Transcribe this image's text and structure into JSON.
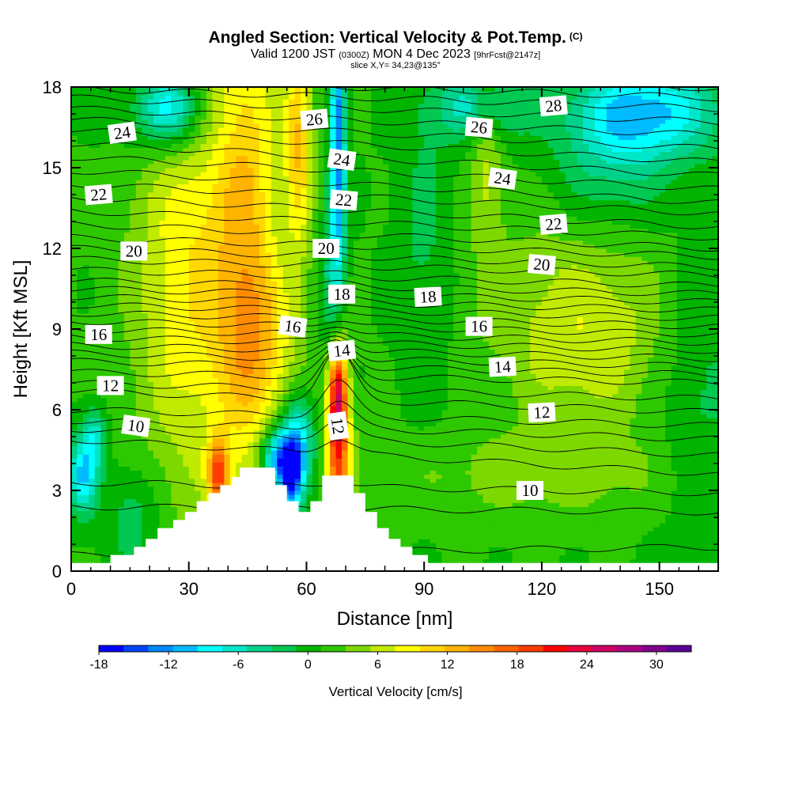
{
  "header": {
    "title": "Angled Section: Vertical Velocity & Pot.Temp.",
    "title_suffix": "(C)",
    "subtitle_a": "Valid 1200 JST",
    "subtitle_b": "(0300Z)",
    "subtitle_c": "MON 4 Dec 2023",
    "subtitle_d": "[9hrFcst@2147z]",
    "slice": "slice X,Y= 34,23@135°"
  },
  "chart_data": {
    "type": "heatmap",
    "xlabel": "Distance [nm]",
    "ylabel": "Height [Kft MSL]",
    "xlim": [
      0,
      165
    ],
    "ylim": [
      0,
      18
    ],
    "xticks": [
      0,
      30,
      60,
      90,
      120,
      150
    ],
    "yticks": [
      0,
      3,
      6,
      9,
      12,
      15,
      18
    ],
    "colorbar": {
      "title": "Vertical Velocity [cm/s]",
      "range": [
        -18,
        33
      ],
      "tick_values": [
        -18,
        -12,
        -6,
        0,
        6,
        12,
        18,
        24,
        30
      ],
      "tick_labels": [
        "-18",
        "-12",
        "-6",
        "0",
        "6",
        "12",
        "18",
        "24",
        "30"
      ],
      "colors": [
        "#0000ff",
        "#0044ff",
        "#0088ff",
        "#00bbff",
        "#00ffff",
        "#00e6c8",
        "#00d28c",
        "#00c850",
        "#00b400",
        "#2ec800",
        "#7dd800",
        "#c0ea00",
        "#ffff00",
        "#ffd800",
        "#ffb400",
        "#ff8c00",
        "#ff6400",
        "#ff3c00",
        "#ff0000",
        "#e6003c",
        "#cc0064",
        "#aa0080",
        "#82008c",
        "#5a0096"
      ]
    },
    "terrain": [
      [
        0,
        0.3
      ],
      [
        10,
        0.3
      ],
      [
        10,
        0.6
      ],
      [
        16,
        0.6
      ],
      [
        16,
        0.9
      ],
      [
        19,
        0.9
      ],
      [
        19,
        1.2
      ],
      [
        22,
        1.2
      ],
      [
        22,
        1.6
      ],
      [
        26,
        1.6
      ],
      [
        26,
        1.9
      ],
      [
        29,
        1.9
      ],
      [
        29,
        2.2
      ],
      [
        32,
        2.2
      ],
      [
        32,
        2.6
      ],
      [
        35,
        2.6
      ],
      [
        35,
        2.9
      ],
      [
        38,
        2.9
      ],
      [
        38,
        3.2
      ],
      [
        41,
        3.2
      ],
      [
        41,
        3.5
      ],
      [
        43,
        3.5
      ],
      [
        43,
        3.85
      ],
      [
        52,
        3.85
      ],
      [
        52,
        3.2
      ],
      [
        55,
        3.2
      ],
      [
        55,
        2.6
      ],
      [
        58,
        2.6
      ],
      [
        58,
        2.2
      ],
      [
        61,
        2.2
      ],
      [
        61,
        2.6
      ],
      [
        64,
        2.6
      ],
      [
        64,
        3.55
      ],
      [
        72,
        3.55
      ],
      [
        72,
        2.9
      ],
      [
        75,
        2.9
      ],
      [
        75,
        2.2
      ],
      [
        78,
        2.2
      ],
      [
        78,
        1.6
      ],
      [
        81,
        1.6
      ],
      [
        81,
        1.2
      ],
      [
        84,
        1.2
      ],
      [
        84,
        0.9
      ],
      [
        87,
        0.9
      ],
      [
        87,
        0.6
      ],
      [
        91,
        0.6
      ],
      [
        91,
        0.3
      ],
      [
        165,
        0.3
      ]
    ],
    "velocity_regions": [
      {
        "value": 8,
        "x": 30,
        "y": 11,
        "sx": 10,
        "sy": 6
      },
      {
        "value": 9,
        "x": 45,
        "y": 13,
        "sx": 6,
        "sy": 8
      },
      {
        "value": 10,
        "x": 58,
        "y": 16,
        "sx": 2.5,
        "sy": 3
      },
      {
        "value": 5,
        "x": 50,
        "y": 8.5,
        "sx": 7,
        "sy": 2
      },
      {
        "value": 18,
        "x": 68,
        "y": 4.8,
        "sx": 2.2,
        "sy": 2.3
      },
      {
        "value": 12,
        "x": 68,
        "y": 6.8,
        "sx": 1.5,
        "sy": 1.2
      },
      {
        "value": 14,
        "x": 37.5,
        "y": 3.6,
        "sx": 1.8,
        "sy": 0.9
      },
      {
        "value": 5,
        "x": 106,
        "y": 16,
        "sx": 3,
        "sy": 3
      },
      {
        "value": 5,
        "x": 131,
        "y": 8,
        "sx": 15,
        "sy": 2
      },
      {
        "value": 3,
        "x": 130,
        "y": 11,
        "sx": 20,
        "sy": 2
      },
      {
        "value": -5,
        "x": 25,
        "y": 17,
        "sx": 9,
        "sy": 1.3
      },
      {
        "value": -8,
        "x": 25,
        "y": 17.3,
        "sx": 5,
        "sy": 0.9
      },
      {
        "value": -12,
        "x": 68,
        "y": 17,
        "sx": 1.3,
        "sy": 2
      },
      {
        "value": -9,
        "x": 68,
        "y": 13,
        "sx": 1.5,
        "sy": 2.5
      },
      {
        "value": -4,
        "x": 66,
        "y": 10,
        "sx": 2,
        "sy": 2.5
      },
      {
        "value": -10,
        "x": 148,
        "y": 17.1,
        "sx": 13,
        "sy": 1.2
      },
      {
        "value": -8,
        "x": 104,
        "y": 17.3,
        "sx": 8,
        "sy": 0.9
      },
      {
        "value": -5,
        "x": 138,
        "y": 15.5,
        "sx": 10,
        "sy": 2
      },
      {
        "value": -11,
        "x": 3,
        "y": 3.6,
        "sx": 2.5,
        "sy": 1
      },
      {
        "value": -7,
        "x": 6,
        "y": 5,
        "sx": 2,
        "sy": 0.8
      },
      {
        "value": -17,
        "x": 56,
        "y": 3.6,
        "sx": 2.2,
        "sy": 1
      },
      {
        "value": -13,
        "x": 52,
        "y": 4.2,
        "sx": 3,
        "sy": 0.8
      },
      {
        "value": -9,
        "x": 58,
        "y": 5,
        "sx": 3,
        "sy": 1.2
      },
      {
        "value": -4,
        "x": 16,
        "y": 2,
        "sx": 5,
        "sy": 1.5
      },
      {
        "value": -3,
        "x": 160,
        "y": 7,
        "sx": 8,
        "sy": 4
      },
      {
        "value": -3,
        "x": 90,
        "y": 12,
        "sx": 5,
        "sy": 4
      },
      {
        "value": 3,
        "x": 120,
        "y": 3.6,
        "sx": 30,
        "sy": 1.2
      }
    ],
    "theta_contours": [
      {
        "value": 8,
        "y_at_x0": 0.6,
        "y_at_x165": 0.9,
        "bump": 0
      },
      {
        "value": 9,
        "y_at_x0": 2.4,
        "y_at_x165": 2.2,
        "bump": 0
      },
      {
        "value": 9.5,
        "y_at_x0": 3.3,
        "y_at_x165": 2.9,
        "bump": 0.2
      },
      {
        "value": 10,
        "y_at_x0": 4.9,
        "y_at_x165": 3.6,
        "bump": 0.6
      },
      {
        "value": 10.5,
        "y_at_x0": 5.3,
        "y_at_x165": 4.3,
        "bump": 0.8
      },
      {
        "value": 11,
        "y_at_x0": 5.6,
        "y_at_x165": 4.9,
        "bump": 1.0
      },
      {
        "value": 11.5,
        "y_at_x0": 6.0,
        "y_at_x165": 5.4,
        "bump": 1.3
      },
      {
        "value": 12,
        "y_at_x0": 6.7,
        "y_at_x165": 5.9,
        "bump": 1.8
      },
      {
        "value": 12.5,
        "y_at_x0": 7.0,
        "y_at_x165": 6.4,
        "bump": 1.4
      },
      {
        "value": 13,
        "y_at_x0": 7.4,
        "y_at_x165": 7.0,
        "bump": 1.0
      },
      {
        "value": 13.5,
        "y_at_x0": 7.8,
        "y_at_x165": 7.3,
        "bump": 0.8
      },
      {
        "value": 14,
        "y_at_x0": 8.1,
        "y_at_x165": 7.6,
        "bump": 0.7
      },
      {
        "value": 14.5,
        "y_at_x0": 8.4,
        "y_at_x165": 7.9,
        "bump": 0.6
      },
      {
        "value": 15,
        "y_at_x0": 8.7,
        "y_at_x165": 8.2,
        "bump": 0.5
      },
      {
        "value": 15.5,
        "y_at_x0": 9.0,
        "y_at_x165": 8.5,
        "bump": 0.4
      },
      {
        "value": 16,
        "y_at_x0": 9.3,
        "y_at_x165": 8.8,
        "bump": 0.3
      },
      {
        "value": 16.5,
        "y_at_x0": 9.6,
        "y_at_x165": 9.1,
        "bump": 0.3
      },
      {
        "value": 17,
        "y_at_x0": 9.9,
        "y_at_x165": 9.4,
        "bump": 0.2
      },
      {
        "value": 17.5,
        "y_at_x0": 10.2,
        "y_at_x165": 9.7,
        "bump": 0.2
      },
      {
        "value": 18,
        "y_at_x0": 10.5,
        "y_at_x165": 10.0,
        "bump": 0.2
      },
      {
        "value": 18.5,
        "y_at_x0": 10.8,
        "y_at_x165": 10.3,
        "bump": 0.1
      },
      {
        "value": 19,
        "y_at_x0": 11.2,
        "y_at_x165": 10.6,
        "bump": 0.1
      },
      {
        "value": 19.5,
        "y_at_x0": 11.6,
        "y_at_x165": 11.0,
        "bump": 0.1
      },
      {
        "value": 20,
        "y_at_x0": 12.0,
        "y_at_x165": 11.3,
        "bump": 0.1
      },
      {
        "value": 20.5,
        "y_at_x0": 12.4,
        "y_at_x165": 11.7,
        "bump": 0
      },
      {
        "value": 21,
        "y_at_x0": 12.9,
        "y_at_x165": 12.0,
        "bump": 0
      },
      {
        "value": 21.5,
        "y_at_x0": 13.4,
        "y_at_x165": 12.4,
        "bump": 0
      },
      {
        "value": 22,
        "y_at_x0": 13.9,
        "y_at_x165": 12.8,
        "bump": 0
      },
      {
        "value": 22.5,
        "y_at_x0": 14.4,
        "y_at_x165": 13.3,
        "bump": 0
      },
      {
        "value": 23,
        "y_at_x0": 14.9,
        "y_at_x165": 13.7,
        "bump": 0
      },
      {
        "value": 23.5,
        "y_at_x0": 15.4,
        "y_at_x165": 14.2,
        "bump": 0
      },
      {
        "value": 24,
        "y_at_x0": 15.9,
        "y_at_x165": 14.7,
        "bump": 0
      },
      {
        "value": 24.5,
        "y_at_x0": 16.4,
        "y_at_x165": 15.2,
        "bump": 0
      },
      {
        "value": 25,
        "y_at_x0": 16.8,
        "y_at_x165": 15.7,
        "bump": 0
      },
      {
        "value": 25.5,
        "y_at_x0": 17.2,
        "y_at_x165": 16.2,
        "bump": 0
      },
      {
        "value": 26,
        "y_at_x0": 17.6,
        "y_at_x165": 16.7,
        "bump": 0
      },
      {
        "value": 26.5,
        "y_at_x0": 17.95,
        "y_at_x165": 17.2,
        "bump": 0
      },
      {
        "value": 27,
        "y_at_x0": 18.3,
        "y_at_x165": 17.6,
        "bump": 0
      },
      {
        "value": 28,
        "y_at_x0": 18.9,
        "y_at_x165": 17.95,
        "bump": 0
      }
    ],
    "contour_labels": [
      {
        "text": "24",
        "x": 13,
        "y": 16.3,
        "angle": -8
      },
      {
        "text": "22",
        "x": 7,
        "y": 14.0,
        "angle": -5
      },
      {
        "text": "20",
        "x": 16,
        "y": 11.9,
        "angle": 0
      },
      {
        "text": "16",
        "x": 7,
        "y": 8.8,
        "angle": 0
      },
      {
        "text": "12",
        "x": 10,
        "y": 6.9,
        "angle": 0
      },
      {
        "text": "10",
        "x": 16.5,
        "y": 5.4,
        "angle": 8
      },
      {
        "text": "26",
        "x": 62,
        "y": 16.8,
        "angle": -5
      },
      {
        "text": "24",
        "x": 69,
        "y": 15.3,
        "angle": 8
      },
      {
        "text": "22",
        "x": 69.5,
        "y": 13.8,
        "angle": 5
      },
      {
        "text": "20",
        "x": 65,
        "y": 12.0,
        "angle": 0
      },
      {
        "text": "18",
        "x": 69,
        "y": 10.3,
        "angle": 0
      },
      {
        "text": "16",
        "x": 56.5,
        "y": 9.1,
        "angle": 8
      },
      {
        "text": "14",
        "x": 69,
        "y": 8.2,
        "angle": -6
      },
      {
        "text": "12",
        "x": 68,
        "y": 5.4,
        "angle": 82
      },
      {
        "text": "28",
        "x": 123,
        "y": 17.3,
        "angle": -5
      },
      {
        "text": "26",
        "x": 104,
        "y": 16.5,
        "angle": 5
      },
      {
        "text": "24",
        "x": 110,
        "y": 14.6,
        "angle": 8
      },
      {
        "text": "22",
        "x": 123,
        "y": 12.9,
        "angle": -5
      },
      {
        "text": "20",
        "x": 120,
        "y": 11.4,
        "angle": 5
      },
      {
        "text": "18",
        "x": 91,
        "y": 10.2,
        "angle": -3
      },
      {
        "text": "16",
        "x": 104,
        "y": 9.1,
        "angle": 0
      },
      {
        "text": "14",
        "x": 110,
        "y": 7.6,
        "angle": -3
      },
      {
        "text": "12",
        "x": 120,
        "y": 5.9,
        "angle": -3
      },
      {
        "text": "10",
        "x": 117,
        "y": 3.0,
        "angle": 0
      }
    ]
  }
}
